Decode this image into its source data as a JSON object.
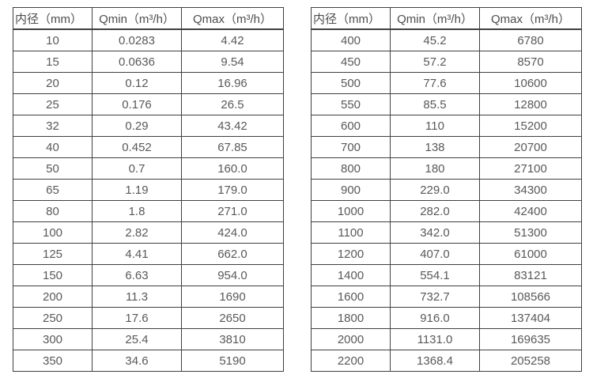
{
  "page": {
    "background": "#ffffff",
    "border_color": "#3f3f3f",
    "text_color": "#595959"
  },
  "tables": [
    {
      "headers": [
        "内径（mm）",
        "Qmin（m³/h）",
        "Qmax（m³/h）"
      ],
      "rows": [
        [
          "10",
          "0.0283",
          "4.42"
        ],
        [
          "15",
          "0.0636",
          "9.54"
        ],
        [
          "20",
          "0.12",
          "16.96"
        ],
        [
          "25",
          "0.176",
          "26.5"
        ],
        [
          "32",
          "0.29",
          "43.42"
        ],
        [
          "40",
          "0.452",
          "67.85"
        ],
        [
          "50",
          "0.7",
          "160.0"
        ],
        [
          "65",
          "1.19",
          "179.0"
        ],
        [
          "80",
          "1.8",
          "271.0"
        ],
        [
          "100",
          "2.82",
          "424.0"
        ],
        [
          "125",
          "4.41",
          "662.0"
        ],
        [
          "150",
          "6.63",
          "954.0"
        ],
        [
          "200",
          "11.3",
          "1690"
        ],
        [
          "250",
          "17.6",
          "2650"
        ],
        [
          "300",
          "25.4",
          "3810"
        ],
        [
          "350",
          "34.6",
          "5190"
        ]
      ]
    },
    {
      "headers": [
        "内径（mm）",
        "Qmin（m³/h）",
        "Qmax（m³/h）"
      ],
      "rows": [
        [
          "400",
          "45.2",
          "6780"
        ],
        [
          "450",
          "57.2",
          "8570"
        ],
        [
          "500",
          "77.6",
          "10600"
        ],
        [
          "550",
          "85.5",
          "12800"
        ],
        [
          "600",
          "110",
          "15200"
        ],
        [
          "700",
          "138",
          "20700"
        ],
        [
          "800",
          "180",
          "27100"
        ],
        [
          "900",
          "229.0",
          "34300"
        ],
        [
          "1000",
          "282.0",
          "42400"
        ],
        [
          "1100",
          "342.0",
          "51300"
        ],
        [
          "1200",
          "407.0",
          "61000"
        ],
        [
          "1400",
          "554.1",
          "83121"
        ],
        [
          "1600",
          "732.7",
          "108566"
        ],
        [
          "1800",
          "916.0",
          "137404"
        ],
        [
          "2000",
          "1131.0",
          "169635"
        ],
        [
          "2200",
          "1368.4",
          "205258"
        ]
      ]
    }
  ]
}
